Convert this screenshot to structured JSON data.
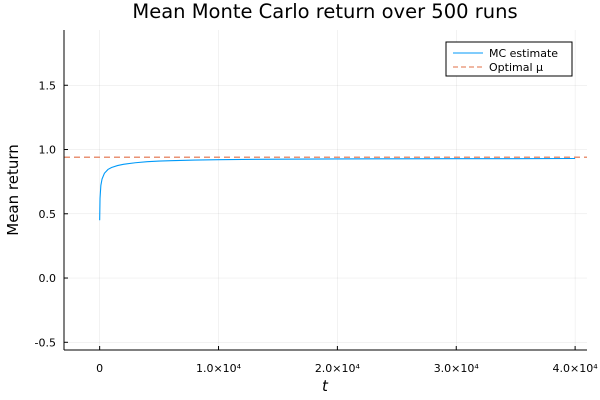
{
  "chart_data": {
    "type": "line",
    "title": "Mean Monte Carlo return over 500 runs",
    "xlabel": "t",
    "ylabel": "Mean return",
    "xlim": [
      -3000,
      41000
    ],
    "ylim": [
      -0.56,
      1.93
    ],
    "grid": true,
    "legend_position": "top-right",
    "xticks": [
      {
        "value": 0,
        "label": "0"
      },
      {
        "value": 10000,
        "label": "1.0×10⁴"
      },
      {
        "value": 20000,
        "label": "2.0×10⁴"
      },
      {
        "value": 30000,
        "label": "3.0×10⁴"
      },
      {
        "value": 40000,
        "label": "4.0×10⁴"
      }
    ],
    "yticks": [
      {
        "value": -0.5,
        "label": "-0.5"
      },
      {
        "value": 0.0,
        "label": "0.0"
      },
      {
        "value": 0.5,
        "label": "0.5"
      },
      {
        "value": 1.0,
        "label": "1.0"
      },
      {
        "value": 1.5,
        "label": "1.5"
      }
    ],
    "series": [
      {
        "name": "MC estimate",
        "style": "solid",
        "color": "#009af9",
        "x": [
          1,
          30,
          100,
          200,
          400,
          700,
          1000,
          1500,
          2000,
          3000,
          4000,
          5000,
          6000,
          8000,
          10000,
          12000,
          15000,
          20000,
          25000,
          30000,
          35000,
          40000
        ],
        "y": [
          0.45,
          0.62,
          0.72,
          0.77,
          0.815,
          0.845,
          0.86,
          0.875,
          0.885,
          0.897,
          0.905,
          0.91,
          0.913,
          0.918,
          0.921,
          0.923,
          0.925,
          0.927,
          0.928,
          0.929,
          0.929,
          0.93
        ]
      },
      {
        "name": "Optimal μ",
        "style": "dashed",
        "color": "#e26f46",
        "x": [
          -3000,
          41000
        ],
        "y": [
          0.94,
          0.94
        ]
      }
    ]
  }
}
